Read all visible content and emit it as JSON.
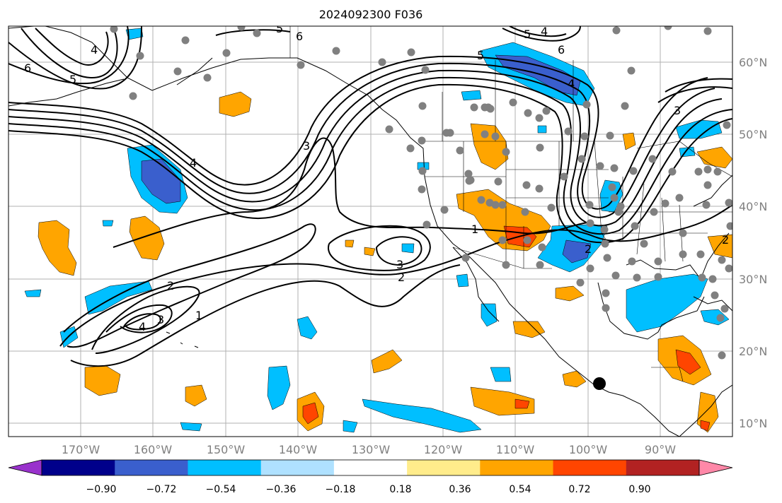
{
  "title": "2024092300 F036",
  "map": {
    "lon_labels": [
      "170°W",
      "160°W",
      "150°W",
      "140°W",
      "130°W",
      "120°W",
      "110°W",
      "100°W",
      "90°W"
    ],
    "lat_labels": [
      "60°N",
      "50°N",
      "40°N",
      "30°N",
      "20°N",
      "10°N"
    ],
    "land_color": "#ffffff",
    "ocean_color": "#ffffff",
    "station_color": "#808080",
    "storm_marker_color": "#000000"
  },
  "contour_labels": [
    "6",
    "5",
    "4",
    "6",
    "5",
    "4",
    "5",
    "6",
    "4",
    "3",
    "3",
    "4",
    "2",
    "1",
    "2",
    "3",
    "1",
    "2",
    "3",
    "4",
    "5",
    "2"
  ],
  "colorbar": {
    "colors": [
      "#9932cc",
      "#00008b",
      "#3a5fcd",
      "#00bfff",
      "#afe1ff",
      "#ffffff",
      "#ffec8b",
      "#ffa500",
      "#ff4500",
      "#b22222",
      "#ff88a8"
    ],
    "tick_labels": [
      "−0.90",
      "−0.72",
      "−0.54",
      "−0.36",
      "−0.18",
      "0.18",
      "0.36",
      "0.54",
      "0.72",
      "0.90"
    ]
  }
}
